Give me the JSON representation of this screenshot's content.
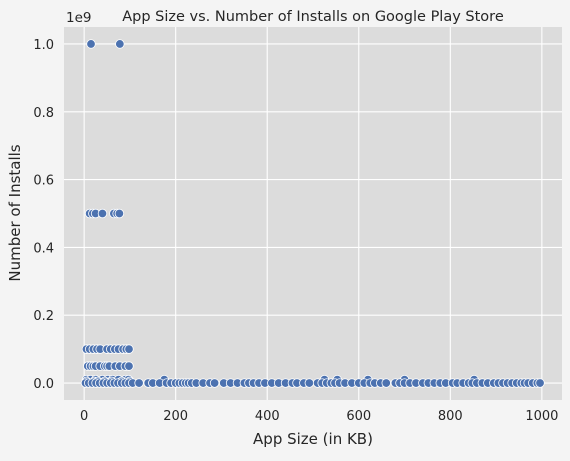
{
  "chart_data": {
    "type": "scatter",
    "title": "App Size vs. Number of Installs on Google Play Store",
    "xlabel": "App Size (in KB)",
    "ylabel": "Number of Installs",
    "offset_text": "1e9",
    "xlim": [
      -44,
      1044
    ],
    "ylim": [
      -0.05,
      1.05
    ],
    "y_scale_multiplier": 1000000000,
    "xticks": [
      0,
      200,
      400,
      600,
      800,
      1000
    ],
    "xtick_labels": [
      "0",
      "200",
      "400",
      "600",
      "800",
      "1000"
    ],
    "yticks": [
      0.0,
      0.2,
      0.4,
      0.6,
      0.8,
      1.0
    ],
    "ytick_labels": [
      "0.0",
      "0.2",
      "0.4",
      "0.6",
      "0.8",
      "1.0"
    ],
    "grid": true,
    "colors": {
      "background": "#dcdcdc",
      "grid": "#ffffff",
      "marker": "#4c72b0",
      "marker_edge": "#ffffff",
      "figure": "#f4f4f4"
    },
    "series": [
      {
        "points": [
          [
            15,
            1.0
          ],
          [
            78,
            1.0
          ],
          [
            12,
            0.5
          ],
          [
            19,
            0.5
          ],
          [
            25,
            0.5
          ],
          [
            40,
            0.5
          ],
          [
            65,
            0.5
          ],
          [
            72,
            0.5
          ],
          [
            77,
            0.5
          ],
          [
            5,
            0.1
          ],
          [
            12,
            0.1
          ],
          [
            20,
            0.1
          ],
          [
            28,
            0.1
          ],
          [
            35,
            0.1
          ],
          [
            50,
            0.1
          ],
          [
            58,
            0.1
          ],
          [
            67,
            0.1
          ],
          [
            75,
            0.1
          ],
          [
            85,
            0.1
          ],
          [
            92,
            0.1
          ],
          [
            98,
            0.1
          ],
          [
            8,
            0.05
          ],
          [
            14,
            0.05
          ],
          [
            20,
            0.05
          ],
          [
            25,
            0.05
          ],
          [
            35,
            0.05
          ],
          [
            45,
            0.05
          ],
          [
            50,
            0.05
          ],
          [
            55,
            0.05
          ],
          [
            68,
            0.05
          ],
          [
            78,
            0.05
          ],
          [
            90,
            0.05
          ],
          [
            98,
            0.05
          ],
          [
            5,
            0.01
          ],
          [
            14,
            0.01
          ],
          [
            25,
            0.01
          ],
          [
            40,
            0.01
          ],
          [
            52,
            0.01
          ],
          [
            62,
            0.01
          ],
          [
            75,
            0.01
          ],
          [
            90,
            0.01
          ],
          [
            97,
            0.01
          ],
          [
            175,
            0.01
          ],
          [
            525,
            0.01
          ],
          [
            553,
            0.01
          ],
          [
            620,
            0.01
          ],
          [
            700,
            0.01
          ],
          [
            852,
            0.01
          ],
          [
            5,
            0.005
          ],
          [
            22,
            0.005
          ],
          [
            30,
            0.005
          ],
          [
            45,
            0.005
          ],
          [
            60,
            0.005
          ],
          [
            82,
            0.005
          ],
          [
            100,
            0.005
          ],
          [
            3,
            0.0
          ],
          [
            10,
            0.0
          ],
          [
            18,
            0.0
          ],
          [
            26,
            0.0
          ],
          [
            34,
            0.0
          ],
          [
            42,
            0.0
          ],
          [
            50,
            0.0
          ],
          [
            58,
            0.0
          ],
          [
            66,
            0.0
          ],
          [
            74,
            0.0
          ],
          [
            82,
            0.0
          ],
          [
            90,
            0.0
          ],
          [
            98,
            0.0
          ],
          [
            106,
            0.0
          ],
          [
            120,
            0.0
          ],
          [
            140,
            0.0
          ],
          [
            150,
            0.0
          ],
          [
            165,
            0.0
          ],
          [
            180,
            0.0
          ],
          [
            190,
            0.0
          ],
          [
            200,
            0.0
          ],
          [
            208,
            0.0
          ],
          [
            215,
            0.0
          ],
          [
            222,
            0.0
          ],
          [
            228,
            0.0
          ],
          [
            235,
            0.0
          ],
          [
            245,
            0.0
          ],
          [
            260,
            0.0
          ],
          [
            275,
            0.0
          ],
          [
            285,
            0.0
          ],
          [
            305,
            0.0
          ],
          [
            320,
            0.0
          ],
          [
            335,
            0.0
          ],
          [
            350,
            0.0
          ],
          [
            360,
            0.0
          ],
          [
            370,
            0.0
          ],
          [
            382,
            0.0
          ],
          [
            395,
            0.0
          ],
          [
            410,
            0.0
          ],
          [
            425,
            0.0
          ],
          [
            440,
            0.0
          ],
          [
            455,
            0.0
          ],
          [
            465,
            0.0
          ],
          [
            480,
            0.0
          ],
          [
            492,
            0.0
          ],
          [
            510,
            0.0
          ],
          [
            520,
            0.0
          ],
          [
            530,
            0.0
          ],
          [
            540,
            0.0
          ],
          [
            548,
            0.0
          ],
          [
            558,
            0.0
          ],
          [
            570,
            0.0
          ],
          [
            585,
            0.0
          ],
          [
            600,
            0.0
          ],
          [
            612,
            0.0
          ],
          [
            625,
            0.0
          ],
          [
            635,
            0.0
          ],
          [
            648,
            0.0
          ],
          [
            660,
            0.0
          ],
          [
            680,
            0.0
          ],
          [
            690,
            0.0
          ],
          [
            700,
            0.0
          ],
          [
            712,
            0.0
          ],
          [
            725,
            0.0
          ],
          [
            740,
            0.0
          ],
          [
            752,
            0.0
          ],
          [
            765,
            0.0
          ],
          [
            778,
            0.0
          ],
          [
            790,
            0.0
          ],
          [
            805,
            0.0
          ],
          [
            815,
            0.0
          ],
          [
            828,
            0.0
          ],
          [
            840,
            0.0
          ],
          [
            848,
            0.0
          ],
          [
            858,
            0.0
          ],
          [
            870,
            0.0
          ],
          [
            882,
            0.0
          ],
          [
            895,
            0.0
          ],
          [
            905,
            0.0
          ],
          [
            915,
            0.0
          ],
          [
            925,
            0.0
          ],
          [
            935,
            0.0
          ],
          [
            945,
            0.0
          ],
          [
            955,
            0.0
          ],
          [
            962,
            0.0
          ],
          [
            970,
            0.0
          ],
          [
            980,
            0.0
          ],
          [
            990,
            0.0
          ],
          [
            996,
            0.0
          ]
        ]
      }
    ]
  }
}
